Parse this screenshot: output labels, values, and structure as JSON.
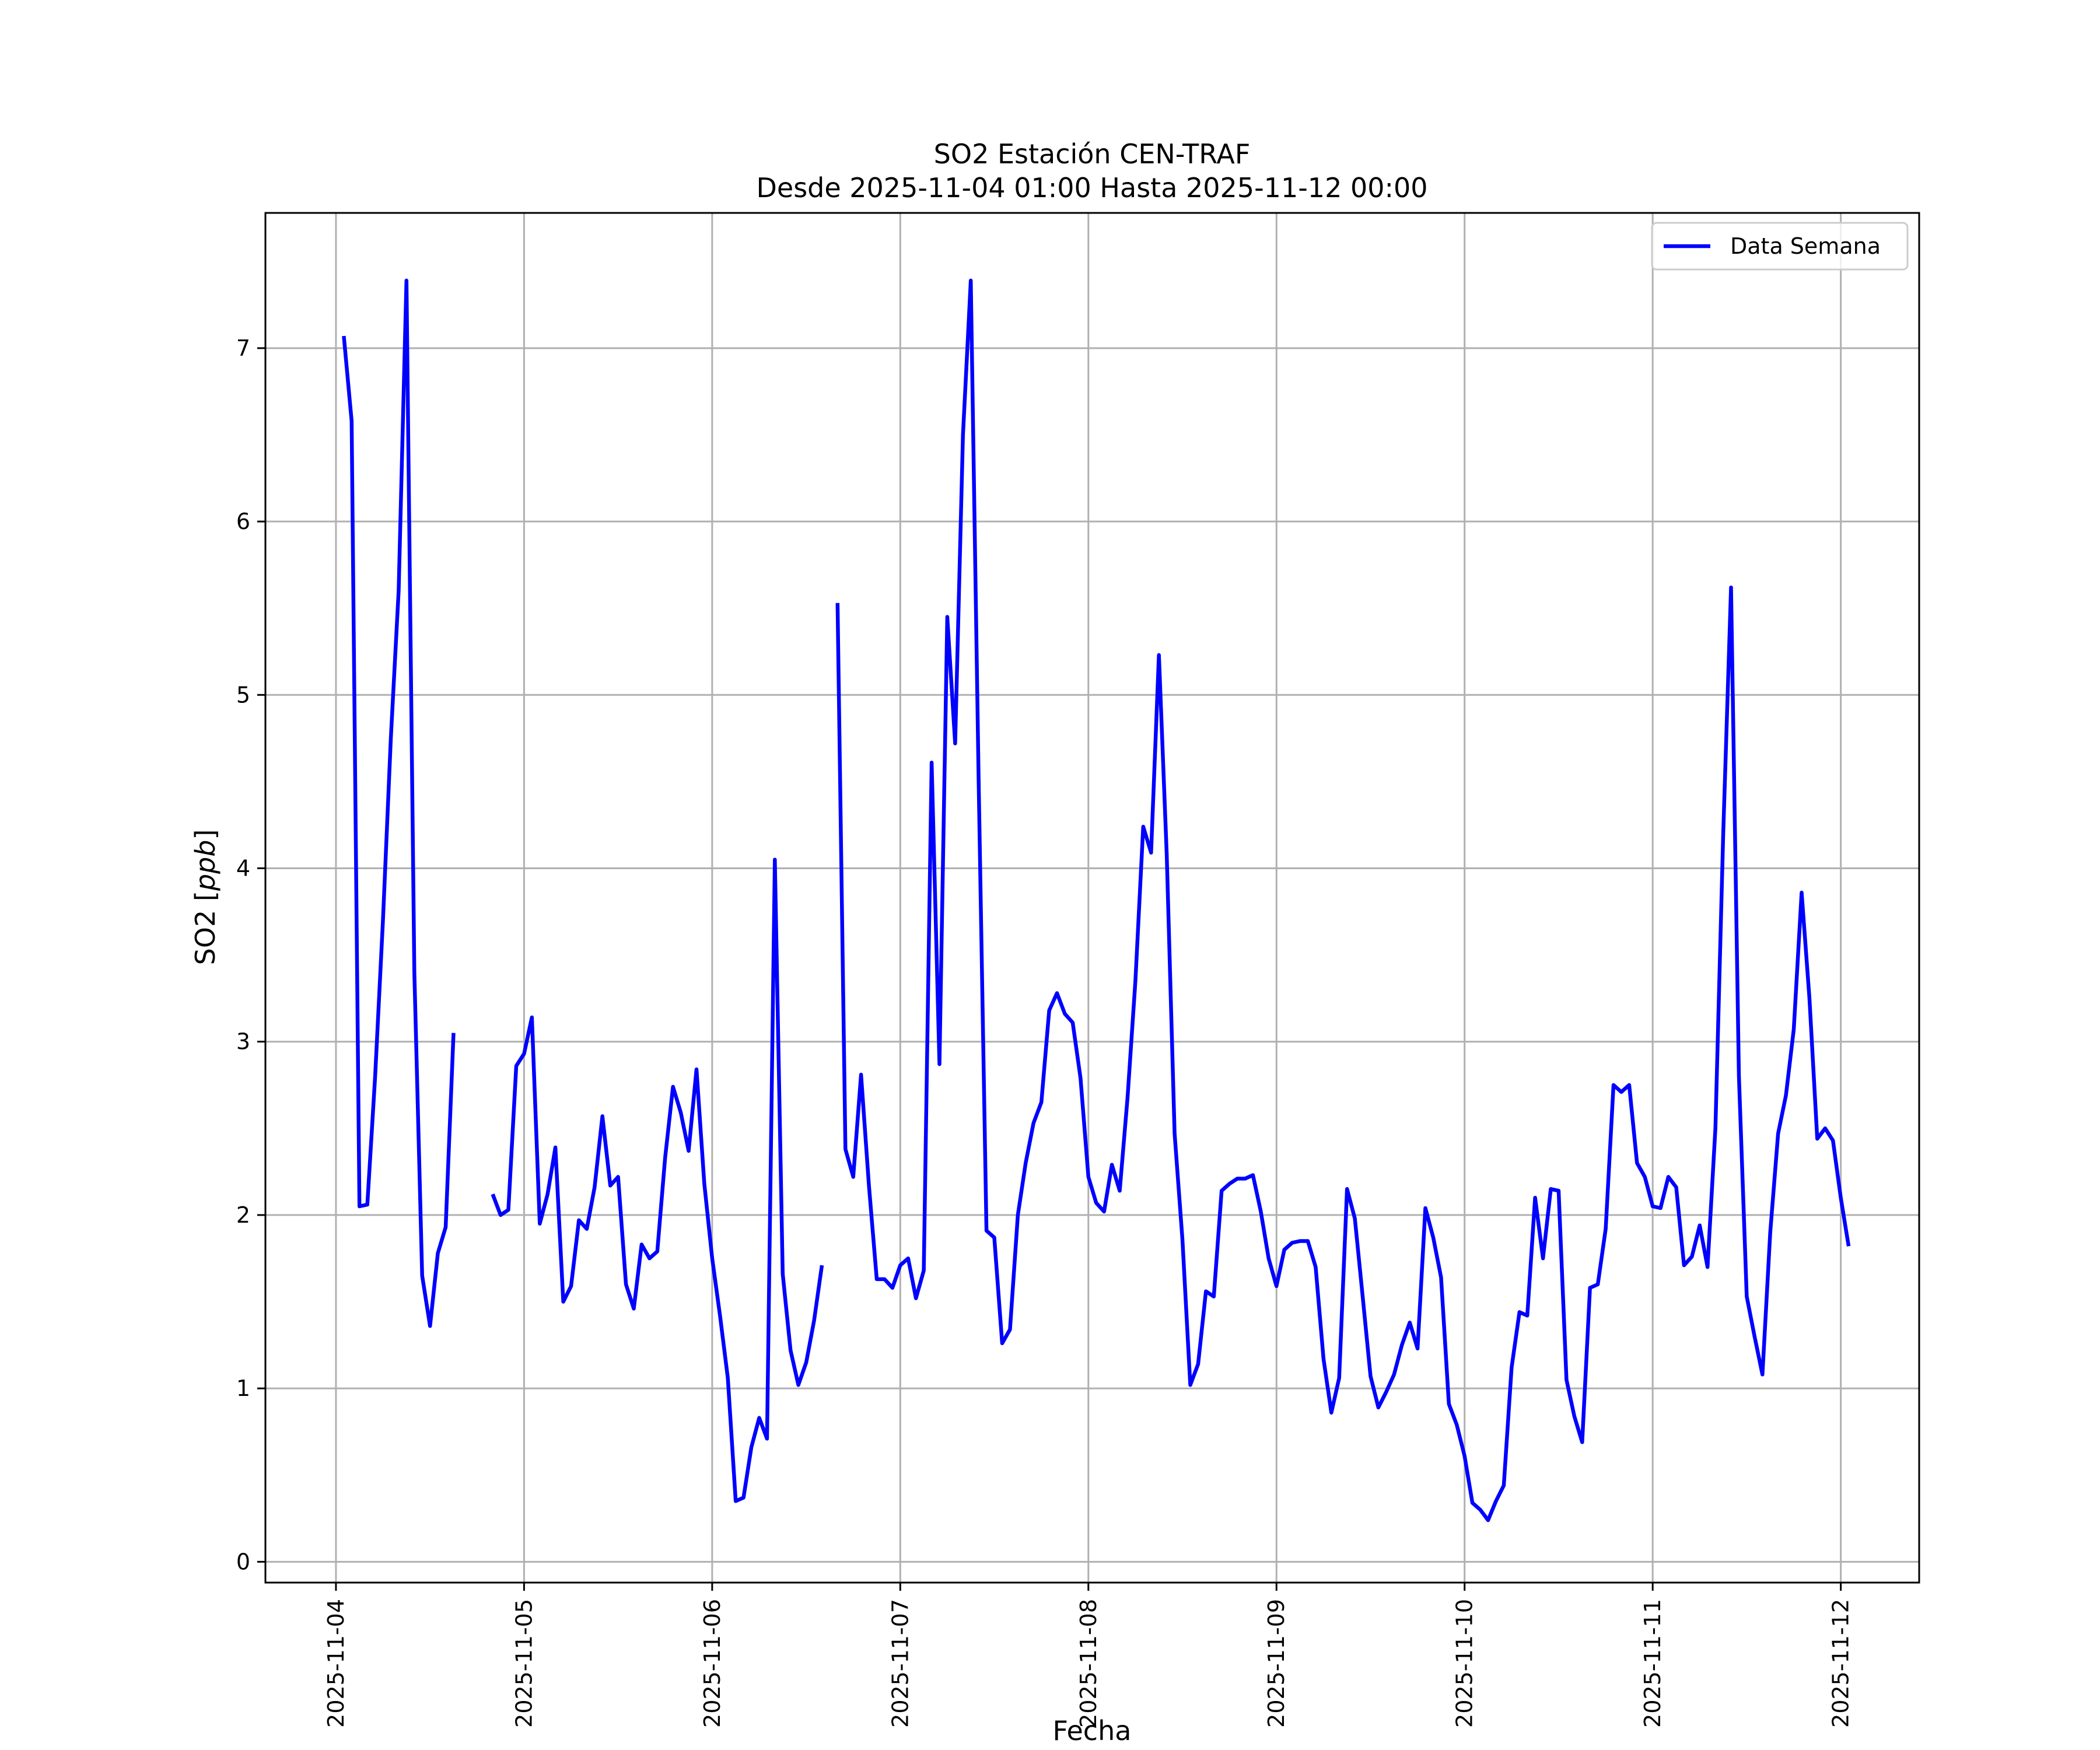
{
  "chart_data": {
    "type": "line",
    "title": "SO2 Estación CEN-TRAF",
    "subtitle": "Desde 2025-11-04 01:00 Hasta 2025-11-12 00:00",
    "xlabel": "Fecha",
    "ylabel_main": "SO2 [",
    "ylabel_unit": "ppb",
    "ylabel_end": "]",
    "x_ticks": [
      "2025-11-04",
      "2025-11-05",
      "2025-11-06",
      "2025-11-07",
      "2025-11-08",
      "2025-11-09",
      "2025-11-10",
      "2025-11-11",
      "2025-11-12"
    ],
    "y_ticks": [
      "0",
      "1",
      "2",
      "3",
      "4",
      "5",
      "6",
      "7"
    ],
    "xlim": [
      "2025-11-03 15:00",
      "2025-11-12 10:00"
    ],
    "ylim": [
      -0.12,
      7.78
    ],
    "grid": true,
    "legend_position": "upper right",
    "series": [
      {
        "name": "Data Semana",
        "color": "#0000ff",
        "x_start": "2025-11-04 01:00",
        "step_hours": 1,
        "values": [
          7.07,
          6.58,
          2.05,
          2.06,
          2.8,
          3.7,
          4.75,
          5.6,
          7.39,
          3.4,
          1.65,
          1.36,
          1.78,
          1.93,
          3.05,
          null,
          null,
          null,
          null,
          2.12,
          2.0,
          2.03,
          2.86,
          2.93,
          3.14,
          1.95,
          2.12,
          2.39,
          1.5,
          1.59,
          1.97,
          1.92,
          2.16,
          2.57,
          2.17,
          2.22,
          1.6,
          1.46,
          1.83,
          1.75,
          1.79,
          2.33,
          2.74,
          2.59,
          2.37,
          2.84,
          2.18,
          1.75,
          1.42,
          1.06,
          0.35,
          0.37,
          0.66,
          0.83,
          0.71,
          4.05,
          1.66,
          1.22,
          1.02,
          1.15,
          1.39,
          1.71,
          null,
          5.53,
          2.38,
          2.22,
          2.81,
          2.17,
          1.63,
          1.63,
          1.58,
          1.71,
          1.75,
          1.52,
          1.68,
          4.61,
          2.87,
          5.45,
          4.72,
          6.5,
          7.39,
          4.5,
          1.91,
          1.87,
          1.26,
          1.34,
          2.0,
          2.3,
          2.53,
          2.65,
          3.18,
          3.28,
          3.16,
          3.11,
          2.79,
          2.22,
          2.07,
          2.02,
          2.29,
          2.14,
          2.68,
          3.35,
          4.24,
          4.09,
          5.23,
          4.08,
          2.47,
          1.86,
          1.02,
          1.14,
          1.56,
          1.53,
          2.14,
          2.18,
          2.21,
          2.21,
          2.23,
          2.02,
          1.75,
          1.59,
          1.8,
          1.84,
          1.85,
          1.85,
          1.7,
          1.17,
          0.86,
          1.06,
          2.15,
          1.98,
          1.53,
          1.07,
          0.89,
          0.98,
          1.08,
          1.25,
          1.38,
          1.23,
          2.04,
          1.87,
          1.64,
          0.91,
          0.79,
          0.61,
          0.34,
          0.3,
          0.24,
          0.35,
          0.44,
          1.12,
          1.44,
          1.42,
          2.1,
          1.75,
          2.15,
          2.14,
          1.05,
          0.84,
          0.69,
          1.58,
          1.6,
          1.92,
          2.75,
          2.71,
          2.75,
          2.3,
          2.22,
          2.05,
          2.04,
          2.22,
          2.16,
          1.71,
          1.76,
          1.94,
          1.7,
          2.5,
          4.2,
          5.62,
          2.8,
          1.53,
          1.3,
          1.08,
          1.9,
          2.47,
          2.69,
          3.07,
          3.86,
          3.25,
          2.44,
          2.5,
          2.43,
          2.1,
          1.82
        ]
      }
    ]
  }
}
